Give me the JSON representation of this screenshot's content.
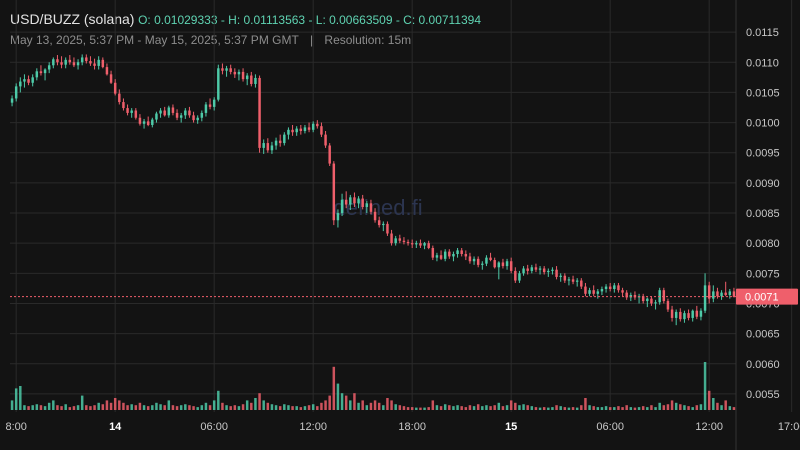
{
  "header": {
    "pair": "USD/BUZZ (solana)",
    "ohlc": "O: 0.01029333 - H: 0.01113563 - L: 0.00663509 - C: 0.00711394",
    "range": "May 13, 2025, 5:37 PM - May 15, 2025, 5:37 PM GMT",
    "separator": "|",
    "resolution": "Resolution: 15m"
  },
  "watermark": "defined.fi",
  "colors": {
    "up": "#4ecaa8",
    "down": "#ef5f6b",
    "grid": "#2a2a2a",
    "price_tag": "#ef5f6b"
  },
  "chart_data": {
    "type": "candlestick",
    "ylim": [
      0.0052,
      0.0119
    ],
    "y_ticks": [
      "0.0115",
      "0.0110",
      "0.0105",
      "0.0100",
      "0.0095",
      "0.0090",
      "0.0085",
      "0.0080",
      "0.0075",
      "0.0070",
      "0.0065",
      "0.0060",
      "0.0055"
    ],
    "x_ticks": [
      {
        "label": "8:00",
        "bold": false,
        "idx": 1
      },
      {
        "label": "14",
        "bold": true,
        "idx": 25
      },
      {
        "label": "06:00",
        "bold": false,
        "idx": 49
      },
      {
        "label": "12:00",
        "bold": false,
        "idx": 73
      },
      {
        "label": "18:00",
        "bold": false,
        "idx": 97
      },
      {
        "label": "15",
        "bold": true,
        "idx": 121
      },
      {
        "label": "06:00",
        "bold": false,
        "idx": 145
      },
      {
        "label": "12:00",
        "bold": false,
        "idx": 169
      },
      {
        "label": "17:00",
        "bold": false,
        "idx": 189
      }
    ],
    "last_price": 0.00711394,
    "last_price_label": "0.0071",
    "candles": [
      [
        0.01033,
        0.01045,
        0.01027,
        0.0104,
        0.2
      ],
      [
        0.0104,
        0.01065,
        0.01035,
        0.0106,
        0.45
      ],
      [
        0.0106,
        0.01075,
        0.0105,
        0.01068,
        0.5
      ],
      [
        0.01068,
        0.0108,
        0.01058,
        0.01072,
        0.1
      ],
      [
        0.01072,
        0.01078,
        0.01062,
        0.01066,
        0.08
      ],
      [
        0.01066,
        0.0108,
        0.0106,
        0.01075,
        0.1
      ],
      [
        0.01075,
        0.0109,
        0.0107,
        0.01085,
        0.12
      ],
      [
        0.01085,
        0.01095,
        0.01078,
        0.01082,
        0.1
      ],
      [
        0.01082,
        0.0109,
        0.0107,
        0.01088,
        0.08
      ],
      [
        0.01088,
        0.011,
        0.01082,
        0.01095,
        0.15
      ],
      [
        0.01095,
        0.01108,
        0.0109,
        0.01105,
        0.2
      ],
      [
        0.01105,
        0.01112,
        0.01095,
        0.011,
        0.1
      ],
      [
        0.011,
        0.0111,
        0.0109,
        0.01096,
        0.08
      ],
      [
        0.01096,
        0.01108,
        0.0109,
        0.01104,
        0.12
      ],
      [
        0.01104,
        0.01112,
        0.01096,
        0.011,
        0.06
      ],
      [
        0.011,
        0.01108,
        0.01092,
        0.01095,
        0.08
      ],
      [
        0.01095,
        0.01105,
        0.01088,
        0.011,
        0.1
      ],
      [
        0.011,
        0.01113,
        0.01095,
        0.01108,
        0.3
      ],
      [
        0.01108,
        0.01113,
        0.01098,
        0.01102,
        0.1
      ],
      [
        0.01102,
        0.0111,
        0.01094,
        0.01098,
        0.08
      ],
      [
        0.01098,
        0.01106,
        0.01088,
        0.01094,
        0.1
      ],
      [
        0.01094,
        0.0111,
        0.01088,
        0.01104,
        0.15
      ],
      [
        0.01104,
        0.01108,
        0.0109,
        0.01092,
        0.12
      ],
      [
        0.01092,
        0.01098,
        0.01078,
        0.0108,
        0.2
      ],
      [
        0.0108,
        0.01086,
        0.01064,
        0.01066,
        0.15
      ],
      [
        0.01066,
        0.01072,
        0.01045,
        0.01048,
        0.25
      ],
      [
        0.01048,
        0.01055,
        0.0103,
        0.01034,
        0.2
      ],
      [
        0.01034,
        0.0104,
        0.0102,
        0.01024,
        0.15
      ],
      [
        0.01024,
        0.0103,
        0.01012,
        0.01016,
        0.1
      ],
      [
        0.01016,
        0.01024,
        0.01008,
        0.0102,
        0.12
      ],
      [
        0.0102,
        0.01024,
        0.01005,
        0.01008,
        0.1
      ],
      [
        0.01008,
        0.01014,
        0.00995,
        0.00998,
        0.15
      ],
      [
        0.00998,
        0.01006,
        0.0099,
        0.01002,
        0.1
      ],
      [
        0.01002,
        0.0101,
        0.00994,
        0.00996,
        0.08
      ],
      [
        0.00996,
        0.01008,
        0.00992,
        0.01005,
        0.1
      ],
      [
        0.01005,
        0.01018,
        0.01,
        0.01015,
        0.15
      ],
      [
        0.01015,
        0.01024,
        0.01008,
        0.0102,
        0.12
      ],
      [
        0.0102,
        0.01026,
        0.0101,
        0.01012,
        0.1
      ],
      [
        0.01012,
        0.01028,
        0.01008,
        0.01025,
        0.2
      ],
      [
        0.01025,
        0.0103,
        0.01012,
        0.01016,
        0.1
      ],
      [
        0.01016,
        0.01022,
        0.01004,
        0.01008,
        0.08
      ],
      [
        0.01008,
        0.01016,
        0.01,
        0.01012,
        0.1
      ],
      [
        0.01012,
        0.01024,
        0.01006,
        0.0102,
        0.12
      ],
      [
        0.0102,
        0.01026,
        0.01008,
        0.01012,
        0.1
      ],
      [
        0.01012,
        0.01018,
        0.01,
        0.01004,
        0.08
      ],
      [
        0.01004,
        0.01012,
        0.00998,
        0.01008,
        0.06
      ],
      [
        0.01008,
        0.0102,
        0.01002,
        0.01016,
        0.1
      ],
      [
        0.01016,
        0.01034,
        0.0101,
        0.0103,
        0.15
      ],
      [
        0.0103,
        0.0104,
        0.01022,
        0.01026,
        0.1
      ],
      [
        0.01026,
        0.01042,
        0.0102,
        0.01038,
        0.2
      ],
      [
        0.01038,
        0.01096,
        0.01035,
        0.0109,
        0.4
      ],
      [
        0.0109,
        0.01098,
        0.0108,
        0.01086,
        0.15
      ],
      [
        0.01086,
        0.01094,
        0.01076,
        0.0109,
        0.1
      ],
      [
        0.0109,
        0.01096,
        0.0108,
        0.01084,
        0.08
      ],
      [
        0.01084,
        0.0109,
        0.01074,
        0.0108,
        0.1
      ],
      [
        0.0108,
        0.01088,
        0.0107,
        0.01084,
        0.08
      ],
      [
        0.01084,
        0.0109,
        0.01068,
        0.01072,
        0.12
      ],
      [
        0.01072,
        0.01082,
        0.01062,
        0.01078,
        0.2
      ],
      [
        0.01078,
        0.01084,
        0.0106,
        0.01064,
        0.15
      ],
      [
        0.01064,
        0.0108,
        0.01058,
        0.01074,
        0.25
      ],
      [
        0.01074,
        0.01078,
        0.0095,
        0.00958,
        0.35
      ],
      [
        0.00958,
        0.00972,
        0.00948,
        0.00966,
        0.2
      ],
      [
        0.00966,
        0.00974,
        0.0095,
        0.00954,
        0.15
      ],
      [
        0.00954,
        0.00968,
        0.00948,
        0.00962,
        0.12
      ],
      [
        0.00962,
        0.00975,
        0.00955,
        0.0097,
        0.1
      ],
      [
        0.0097,
        0.0098,
        0.0096,
        0.00966,
        0.08
      ],
      [
        0.00966,
        0.00984,
        0.00962,
        0.0098,
        0.12
      ],
      [
        0.0098,
        0.00992,
        0.00972,
        0.00988,
        0.1
      ],
      [
        0.00988,
        0.00996,
        0.00978,
        0.00984,
        0.08
      ],
      [
        0.00984,
        0.00994,
        0.00978,
        0.0099,
        0.08
      ],
      [
        0.0099,
        0.00996,
        0.0098,
        0.00986,
        0.06
      ],
      [
        0.00986,
        0.00996,
        0.00982,
        0.00992,
        0.08
      ],
      [
        0.00992,
        0.01,
        0.00984,
        0.00988,
        0.1
      ],
      [
        0.00988,
        0.01002,
        0.00984,
        0.00998,
        0.12
      ],
      [
        0.00998,
        0.01004,
        0.0099,
        0.00994,
        0.08
      ],
      [
        0.00994,
        0.01,
        0.00976,
        0.0098,
        0.15
      ],
      [
        0.0098,
        0.00986,
        0.00958,
        0.00962,
        0.2
      ],
      [
        0.00962,
        0.00966,
        0.00928,
        0.00932,
        0.3
      ],
      [
        0.00932,
        0.00936,
        0.0083,
        0.00838,
        0.9
      ],
      [
        0.00838,
        0.00856,
        0.00826,
        0.0085,
        0.55
      ],
      [
        0.0085,
        0.00882,
        0.00845,
        0.00872,
        0.35
      ],
      [
        0.00872,
        0.00886,
        0.00858,
        0.00864,
        0.3
      ],
      [
        0.00864,
        0.0088,
        0.00855,
        0.00876,
        0.2
      ],
      [
        0.00876,
        0.00884,
        0.0086,
        0.00866,
        0.35
      ],
      [
        0.00866,
        0.00878,
        0.00858,
        0.00874,
        0.15
      ],
      [
        0.00874,
        0.0088,
        0.00856,
        0.0086,
        0.2
      ],
      [
        0.0086,
        0.0087,
        0.0085,
        0.00866,
        0.1
      ],
      [
        0.00866,
        0.00872,
        0.00848,
        0.00852,
        0.15
      ],
      [
        0.00852,
        0.00858,
        0.00834,
        0.00838,
        0.2
      ],
      [
        0.00838,
        0.00844,
        0.00826,
        0.0083,
        0.15
      ],
      [
        0.0083,
        0.00836,
        0.0082,
        0.00832,
        0.1
      ],
      [
        0.00832,
        0.00836,
        0.00812,
        0.00816,
        0.25
      ],
      [
        0.00816,
        0.00822,
        0.00796,
        0.008,
        0.2
      ],
      [
        0.008,
        0.00812,
        0.00796,
        0.00808,
        0.12
      ],
      [
        0.00808,
        0.00814,
        0.008,
        0.00804,
        0.1
      ],
      [
        0.00804,
        0.0081,
        0.00798,
        0.00802,
        0.08
      ],
      [
        0.00802,
        0.00806,
        0.00796,
        0.008,
        0.06
      ],
      [
        0.008,
        0.00806,
        0.00792,
        0.00798,
        0.06
      ],
      [
        0.00798,
        0.00804,
        0.00792,
        0.008,
        0.05
      ],
      [
        0.008,
        0.00806,
        0.00792,
        0.00796,
        0.05
      ],
      [
        0.00796,
        0.00802,
        0.0079,
        0.008,
        0.05
      ],
      [
        0.008,
        0.00804,
        0.0079,
        0.00792,
        0.06
      ],
      [
        0.00792,
        0.00796,
        0.00772,
        0.00776,
        0.2
      ],
      [
        0.00776,
        0.00784,
        0.0077,
        0.0078,
        0.1
      ],
      [
        0.0078,
        0.00788,
        0.00772,
        0.00774,
        0.08
      ],
      [
        0.00774,
        0.0079,
        0.0077,
        0.00786,
        0.12
      ],
      [
        0.00786,
        0.0079,
        0.00774,
        0.00778,
        0.1
      ],
      [
        0.00778,
        0.00786,
        0.0077,
        0.00782,
        0.08
      ],
      [
        0.00782,
        0.00792,
        0.00776,
        0.00788,
        0.1
      ],
      [
        0.00788,
        0.00792,
        0.00778,
        0.00782,
        0.08
      ],
      [
        0.00782,
        0.00788,
        0.00772,
        0.00778,
        0.06
      ],
      [
        0.00778,
        0.00784,
        0.00766,
        0.0077,
        0.1
      ],
      [
        0.0077,
        0.00778,
        0.00764,
        0.00774,
        0.08
      ],
      [
        0.00774,
        0.00778,
        0.0076,
        0.00764,
        0.12
      ],
      [
        0.00764,
        0.0077,
        0.00756,
        0.00766,
        0.08
      ],
      [
        0.00766,
        0.0078,
        0.00762,
        0.00776,
        0.1
      ],
      [
        0.00776,
        0.00784,
        0.0077,
        0.00772,
        0.08
      ],
      [
        0.00772,
        0.00776,
        0.00758,
        0.0076,
        0.1
      ],
      [
        0.0076,
        0.0077,
        0.0074,
        0.00768,
        0.15
      ],
      [
        0.00768,
        0.00774,
        0.00758,
        0.00762,
        0.08
      ],
      [
        0.00762,
        0.00774,
        0.00756,
        0.0077,
        0.1
      ],
      [
        0.0077,
        0.00776,
        0.0075,
        0.00754,
        0.2
      ],
      [
        0.00754,
        0.0076,
        0.00734,
        0.00738,
        0.15
      ],
      [
        0.00738,
        0.00754,
        0.00734,
        0.0075,
        0.1
      ],
      [
        0.0075,
        0.00762,
        0.00746,
        0.00758,
        0.12
      ],
      [
        0.00758,
        0.00764,
        0.00748,
        0.00754,
        0.1
      ],
      [
        0.00754,
        0.00764,
        0.0075,
        0.0076,
        0.08
      ],
      [
        0.0076,
        0.00766,
        0.00752,
        0.00756,
        0.06
      ],
      [
        0.00756,
        0.00762,
        0.00748,
        0.00758,
        0.05
      ],
      [
        0.00758,
        0.00762,
        0.00748,
        0.00752,
        0.06
      ],
      [
        0.00752,
        0.00758,
        0.00744,
        0.00754,
        0.05
      ],
      [
        0.00754,
        0.0076,
        0.00748,
        0.00756,
        0.06
      ],
      [
        0.00756,
        0.00762,
        0.0074,
        0.00744,
        0.1
      ],
      [
        0.00744,
        0.0075,
        0.00736,
        0.00746,
        0.08
      ],
      [
        0.00746,
        0.0075,
        0.00734,
        0.00738,
        0.06
      ],
      [
        0.00738,
        0.00744,
        0.0073,
        0.0074,
        0.05
      ],
      [
        0.0074,
        0.00746,
        0.00732,
        0.00736,
        0.06
      ],
      [
        0.00736,
        0.00742,
        0.00728,
        0.00738,
        0.05
      ],
      [
        0.00738,
        0.00742,
        0.00724,
        0.00728,
        0.1
      ],
      [
        0.00728,
        0.00734,
        0.00712,
        0.00716,
        0.25
      ],
      [
        0.00716,
        0.00726,
        0.00712,
        0.00722,
        0.1
      ],
      [
        0.00722,
        0.0073,
        0.00712,
        0.00716,
        0.08
      ],
      [
        0.00716,
        0.00724,
        0.00708,
        0.0072,
        0.06
      ],
      [
        0.0072,
        0.00728,
        0.00714,
        0.00724,
        0.06
      ],
      [
        0.00724,
        0.00732,
        0.00718,
        0.00728,
        0.08
      ],
      [
        0.00728,
        0.00734,
        0.0072,
        0.00724,
        0.06
      ],
      [
        0.00724,
        0.00734,
        0.00718,
        0.0073,
        0.06
      ],
      [
        0.0073,
        0.00734,
        0.00718,
        0.00722,
        0.08
      ],
      [
        0.00722,
        0.00726,
        0.00712,
        0.00718,
        0.06
      ],
      [
        0.00718,
        0.00722,
        0.00706,
        0.0071,
        0.1
      ],
      [
        0.0071,
        0.00718,
        0.00704,
        0.00714,
        0.06
      ],
      [
        0.00714,
        0.0072,
        0.00706,
        0.0071,
        0.05
      ],
      [
        0.0071,
        0.00716,
        0.007,
        0.00712,
        0.06
      ],
      [
        0.00712,
        0.00716,
        0.007,
        0.00704,
        0.08
      ],
      [
        0.00704,
        0.0071,
        0.00694,
        0.00708,
        0.06
      ],
      [
        0.00708,
        0.00712,
        0.00696,
        0.007,
        0.1
      ],
      [
        0.007,
        0.00706,
        0.0069,
        0.00702,
        0.06
      ],
      [
        0.00702,
        0.00726,
        0.00698,
        0.00722,
        0.15
      ],
      [
        0.00722,
        0.00726,
        0.007,
        0.00704,
        0.1
      ],
      [
        0.00704,
        0.00708,
        0.00686,
        0.0069,
        0.12
      ],
      [
        0.0069,
        0.00696,
        0.0067,
        0.00676,
        0.2
      ],
      [
        0.00676,
        0.0069,
        0.00664,
        0.00686,
        0.15
      ],
      [
        0.00686,
        0.00692,
        0.0067,
        0.00674,
        0.12
      ],
      [
        0.00674,
        0.00688,
        0.00668,
        0.00684,
        0.1
      ],
      [
        0.00684,
        0.0069,
        0.00672,
        0.00676,
        0.08
      ],
      [
        0.00676,
        0.0069,
        0.0067,
        0.00688,
        0.06
      ],
      [
        0.00688,
        0.00696,
        0.00674,
        0.00678,
        0.1
      ],
      [
        0.00678,
        0.00692,
        0.00672,
        0.00688,
        0.12
      ],
      [
        0.00688,
        0.0075,
        0.00684,
        0.0073,
        1.0
      ],
      [
        0.0073,
        0.00736,
        0.007,
        0.00708,
        0.4
      ],
      [
        0.00708,
        0.0073,
        0.00702,
        0.0072,
        0.25
      ],
      [
        0.0072,
        0.00726,
        0.00708,
        0.00712,
        0.15
      ],
      [
        0.00712,
        0.00722,
        0.00706,
        0.00718,
        0.1
      ],
      [
        0.00718,
        0.00736,
        0.00712,
        0.00714,
        0.2
      ],
      [
        0.00714,
        0.00724,
        0.00708,
        0.0072,
        0.08
      ],
      [
        0.0072,
        0.00726,
        0.0071,
        0.00711,
        0.06
      ]
    ]
  }
}
